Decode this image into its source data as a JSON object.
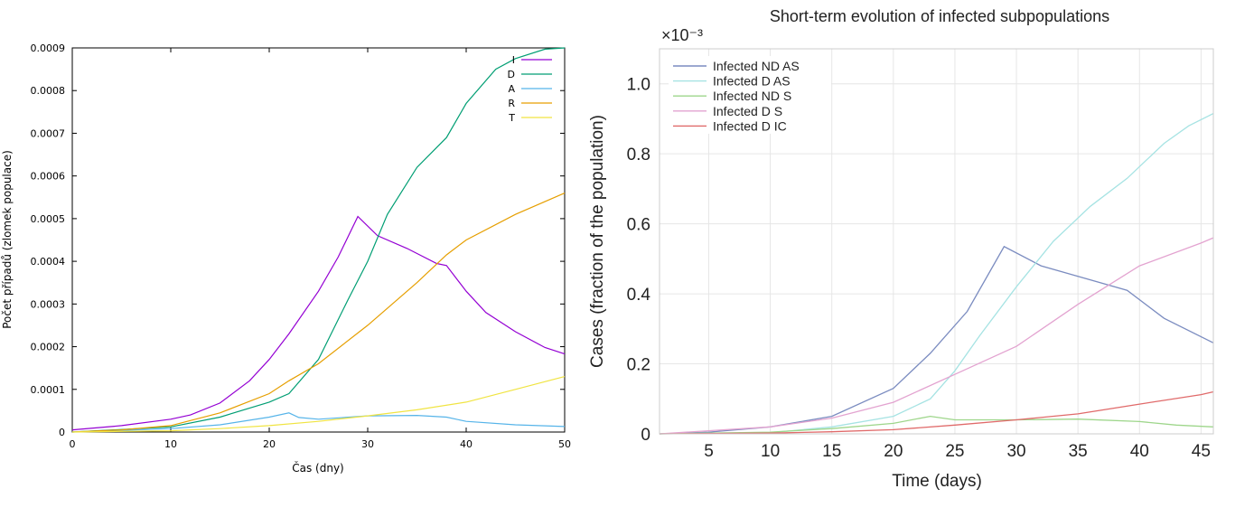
{
  "chart_data": [
    {
      "type": "line",
      "title": "",
      "xlabel": "Čas (dny)",
      "ylabel": "Počet případů (zlomek populace)",
      "xlim": [
        0,
        50
      ],
      "ylim": [
        0,
        0.0009
      ],
      "xticks": [
        "0",
        "10",
        "20",
        "30",
        "40",
        "50"
      ],
      "yticks": [
        "0",
        "0.0001",
        "0.0002",
        "0.0003",
        "0.0004",
        "0.0005",
        "0.0006",
        "0.0007",
        "0.0008",
        "0.0009"
      ],
      "grid": false,
      "legend_position": "top-right",
      "series": [
        {
          "name": "I",
          "color": "#9400d3",
          "x": [
            0,
            5,
            10,
            12,
            15,
            18,
            20,
            22,
            25,
            27,
            29,
            31,
            34,
            37,
            38,
            40,
            42,
            45,
            48,
            50
          ],
          "y": [
            5e-06,
            1.5e-05,
            3e-05,
            4e-05,
            6.8e-05,
            0.00012,
            0.00017,
            0.00023,
            0.00033,
            0.00041,
            0.000505,
            0.00046,
            0.00043,
            0.000395,
            0.00039,
            0.00033,
            0.00028,
            0.000235,
            0.000198,
            0.000183
          ]
        },
        {
          "name": "D",
          "color": "#009e73",
          "x": [
            0,
            10,
            15,
            20,
            22,
            25,
            28,
            30,
            32,
            35,
            38,
            40,
            43,
            45,
            48,
            50
          ],
          "y": [
            0,
            1.2e-05,
            3.5e-05,
            7e-05,
            9e-05,
            0.00017,
            0.00031,
            0.0004,
            0.00051,
            0.00062,
            0.00069,
            0.00077,
            0.00085,
            0.000875,
            0.000897,
            0.0009
          ]
        },
        {
          "name": "A",
          "color": "#56b4e9",
          "x": [
            0,
            10,
            15,
            20,
            22,
            23,
            25,
            30,
            35,
            38,
            40,
            45,
            50
          ],
          "y": [
            0,
            8e-06,
            1.7e-05,
            3.5e-05,
            4.5e-05,
            3.4e-05,
            3e-05,
            3.8e-05,
            3.9e-05,
            3.5e-05,
            2.5e-05,
            1.7e-05,
            1.3e-05
          ]
        },
        {
          "name": "R",
          "color": "#e69f00",
          "x": [
            0,
            5,
            10,
            15,
            20,
            22,
            25,
            30,
            35,
            38,
            40,
            45,
            50
          ],
          "y": [
            0,
            5e-06,
            1.5e-05,
            4.5e-05,
            9e-05,
            0.00012,
            0.00016,
            0.00025,
            0.00035,
            0.000415,
            0.00045,
            0.00051,
            0.00056
          ]
        },
        {
          "name": "T",
          "color": "#f0e442",
          "x": [
            0,
            10,
            15,
            20,
            25,
            30,
            35,
            40,
            45,
            50
          ],
          "y": [
            0,
            3e-06,
            8e-06,
            1.5e-05,
            2.5e-05,
            3.8e-05,
            5.2e-05,
            7e-05,
            0.0001,
            0.00013
          ]
        }
      ]
    },
    {
      "type": "line",
      "title": "Short-term evolution of infected subpopulations",
      "xlabel": "Time (days)",
      "ylabel": "Cases (fraction of the population)",
      "y_multiplier": "×10⁻³",
      "xlim": [
        1,
        46
      ],
      "ylim": [
        0,
        1.1
      ],
      "xticks": [
        "5",
        "10",
        "15",
        "20",
        "25",
        "30",
        "35",
        "40",
        "45"
      ],
      "yticks": [
        "0",
        "0.2",
        "0.4",
        "0.6",
        "0.8",
        "1.0"
      ],
      "grid": true,
      "legend_position": "top-left",
      "series": [
        {
          "name": "Infected ND AS",
          "color": "#7b8cc0",
          "x": [
            1,
            5,
            10,
            15,
            20,
            23,
            26,
            29,
            32,
            35,
            39,
            42,
            46
          ],
          "y": [
            0,
            0.005,
            0.02,
            0.05,
            0.13,
            0.23,
            0.35,
            0.535,
            0.48,
            0.45,
            0.41,
            0.33,
            0.26
          ]
        },
        {
          "name": "Infected D AS",
          "color": "#a6e3e3",
          "x": [
            1,
            10,
            15,
            20,
            23,
            25,
            27,
            30,
            33,
            36,
            39,
            42,
            44,
            46
          ],
          "y": [
            0,
            0.003,
            0.02,
            0.05,
            0.1,
            0.18,
            0.28,
            0.42,
            0.55,
            0.65,
            0.73,
            0.83,
            0.88,
            0.915
          ]
        },
        {
          "name": "Infected ND S",
          "color": "#9ed68b",
          "x": [
            1,
            10,
            15,
            20,
            23,
            25,
            30,
            35,
            40,
            43,
            46
          ],
          "y": [
            0,
            0.005,
            0.015,
            0.03,
            0.05,
            0.04,
            0.04,
            0.042,
            0.035,
            0.025,
            0.02
          ]
        },
        {
          "name": "Infected D S",
          "color": "#e3a3d0",
          "x": [
            1,
            10,
            15,
            20,
            25,
            30,
            35,
            40,
            45,
            46
          ],
          "y": [
            0,
            0.02,
            0.045,
            0.09,
            0.17,
            0.25,
            0.37,
            0.48,
            0.545,
            0.56
          ]
        },
        {
          "name": "Infected D IC",
          "color": "#e06a6a",
          "x": [
            1,
            10,
            15,
            20,
            25,
            30,
            35,
            40,
            45,
            46
          ],
          "y": [
            0,
            0.002,
            0.006,
            0.012,
            0.025,
            0.04,
            0.057,
            0.085,
            0.112,
            0.12
          ]
        }
      ]
    }
  ]
}
